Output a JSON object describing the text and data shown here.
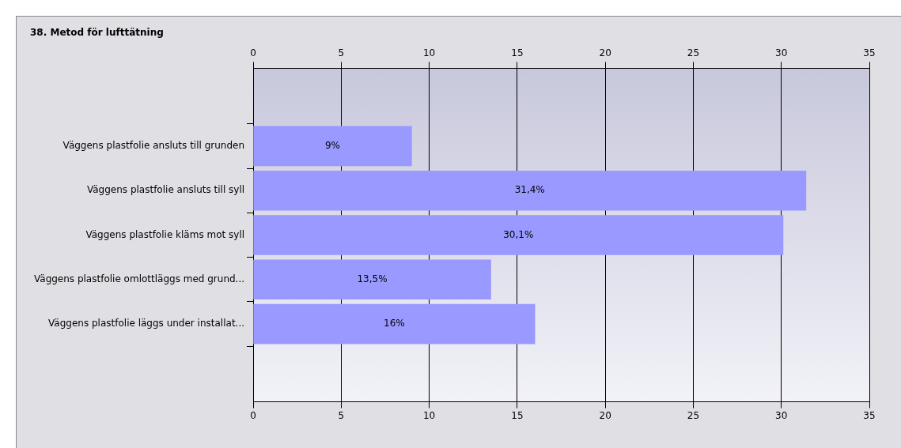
{
  "chart_data": {
    "type": "bar",
    "orientation": "horizontal",
    "title": "38. Metod för lufttätning",
    "categories": [
      "Väggens plastfolie ansluts till grunden",
      "Väggens plastfolie ansluts till syll",
      "Väggens plastfolie kläms mot syll",
      "Väggens plastfolie omlottläggs med grund...",
      "Väggens plastfolie läggs under installat..."
    ],
    "values": [
      9,
      31.4,
      30.1,
      13.5,
      16
    ],
    "value_labels": [
      "9%",
      "31,4%",
      "30,1%",
      "13,5%",
      "16%"
    ],
    "color": "#9999ff",
    "xlim": [
      0,
      35
    ],
    "xticks": [
      0,
      5,
      10,
      15,
      20,
      25,
      30,
      35
    ],
    "x2lim": [
      0,
      35
    ],
    "x2ticks": [
      0,
      5,
      10,
      15,
      20,
      25,
      30,
      35
    ],
    "grid": "x",
    "legend": false
  }
}
